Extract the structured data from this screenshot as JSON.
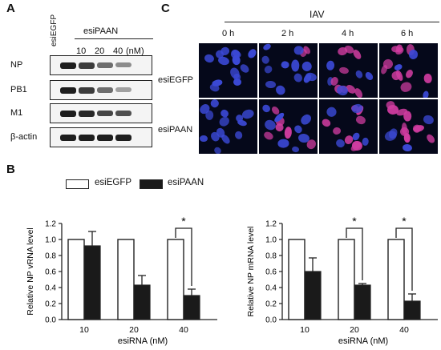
{
  "panels": {
    "a": "A",
    "b": "B",
    "c": "C"
  },
  "blot": {
    "lane_control": "esiEGFP",
    "group_label": "esiPAAN",
    "concentrations": [
      "10",
      "20",
      "40"
    ],
    "unit": "(nM)",
    "rows": [
      {
        "label": "NP",
        "intensities": [
          1.0,
          0.85,
          0.6,
          0.45
        ]
      },
      {
        "label": "PB1",
        "intensities": [
          1.0,
          0.85,
          0.6,
          0.35
        ]
      },
      {
        "label": "M1",
        "intensities": [
          1.0,
          0.95,
          0.8,
          0.75
        ]
      },
      {
        "label": "β-actin",
        "intensities": [
          1.0,
          1.0,
          1.0,
          1.0
        ]
      }
    ]
  },
  "imaging": {
    "header": "IAV",
    "timepoints": [
      "0 h",
      "2 h",
      "4 h",
      "6 h"
    ],
    "rows": [
      "esiEGFP",
      "esiPAAN"
    ],
    "np_signal": [
      [
        0.0,
        0.3,
        0.7,
        0.5
      ],
      [
        0.0,
        0.25,
        0.5,
        0.4
      ]
    ]
  },
  "legend": {
    "series": [
      "esiEGFP",
      "esiPAAN"
    ]
  },
  "chart_data": [
    {
      "type": "bar",
      "ylabel": "Relative NP vRNA level",
      "xlabel": "esiRNA (nM)",
      "categories": [
        "10",
        "20",
        "40"
      ],
      "ylim": [
        0,
        1.2
      ],
      "yticks": [
        "0.0",
        "0.2",
        "0.4",
        "0.6",
        "0.8",
        "1.0",
        "1.2"
      ],
      "series": [
        {
          "name": "esiEGFP",
          "values": [
            1.0,
            1.0,
            1.0
          ],
          "errors": [
            0,
            0,
            0
          ]
        },
        {
          "name": "esiPAAN",
          "values": [
            0.92,
            0.43,
            0.3
          ],
          "errors": [
            0.18,
            0.12,
            0.08
          ]
        }
      ],
      "significance": [
        {
          "category": "40",
          "label": "*"
        }
      ]
    },
    {
      "type": "bar",
      "ylabel": "Relative NP mRNA level",
      "xlabel": "esiRNA (nM)",
      "categories": [
        "10",
        "20",
        "40"
      ],
      "ylim": [
        0,
        1.2
      ],
      "yticks": [
        "0.0",
        "0.2",
        "0.4",
        "0.6",
        "0.8",
        "1.0",
        "1.2"
      ],
      "series": [
        {
          "name": "esiEGFP",
          "values": [
            1.0,
            1.0,
            1.0
          ],
          "errors": [
            0,
            0,
            0
          ]
        },
        {
          "name": "esiPAAN",
          "values": [
            0.6,
            0.43,
            0.23
          ],
          "errors": [
            0.17,
            0.02,
            0.09
          ]
        }
      ],
      "significance": [
        {
          "category": "20",
          "label": "*"
        },
        {
          "category": "40",
          "label": "*"
        }
      ]
    }
  ],
  "colors": {
    "bar_control": "#ffffff",
    "bar_treated": "#1a1a1a",
    "nucleus": "#3b49d6",
    "np_stain": "#d03ca0"
  }
}
